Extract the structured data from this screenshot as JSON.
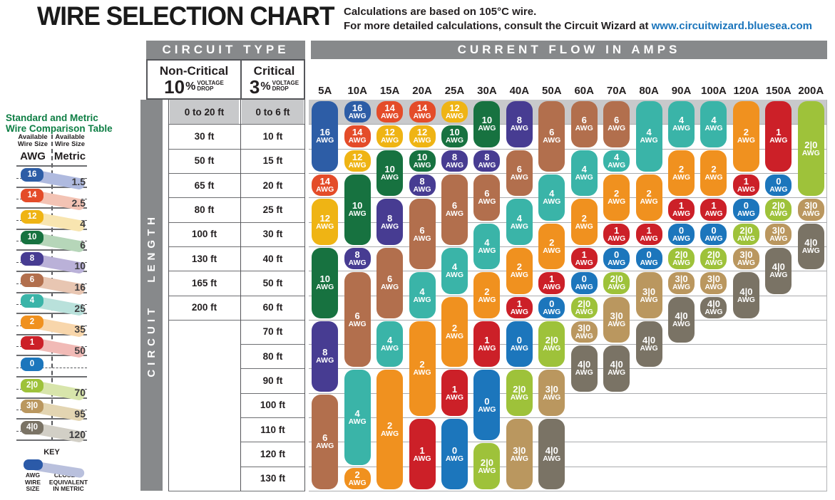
{
  "page": {
    "subtitle_line1": "Calculations are based on 105°C wire.",
    "subtitle_line2_prefix": "For more detailed calculations, consult the Circuit Wizard at ",
    "subtitle_link": "www.circuitwizard.bluesea.com",
    "link_color": "#1b75bc"
  },
  "headers": {
    "circuit_type": "CIRCUIT TYPE",
    "current_flow": "CURRENT FLOW IN AMPS",
    "circuit_length": "CIRCUIT LENGTH"
  },
  "circuit_type": {
    "non_critical_label": "Non-Critical",
    "non_critical_pct": "10",
    "critical_label": "Critical",
    "critical_pct": "3",
    "pct_sign": "%",
    "voltage_line1": "VOLTAGE",
    "voltage_line2": "DROP"
  },
  "chart_data": {
    "type": "table",
    "title": "WIRE SELECTION CHART",
    "awg_unit": "AWG",
    "amp_columns": [
      "5A",
      "10A",
      "15A",
      "20A",
      "25A",
      "30A",
      "40A",
      "50A",
      "60A",
      "70A",
      "80A",
      "90A",
      "100A",
      "120A",
      "150A",
      "200A"
    ],
    "length_rows": [
      {
        "non_critical": "0 to 20 ft",
        "critical": "0 to 6 ft"
      },
      {
        "non_critical": "30 ft",
        "critical": "10 ft"
      },
      {
        "non_critical": "50 ft",
        "critical": "15 ft"
      },
      {
        "non_critical": "65 ft",
        "critical": "20 ft"
      },
      {
        "non_critical": "80 ft",
        "critical": "25 ft"
      },
      {
        "non_critical": "100 ft",
        "critical": "30 ft"
      },
      {
        "non_critical": "130 ft",
        "critical": "40 ft"
      },
      {
        "non_critical": "165 ft",
        "critical": "50 ft"
      },
      {
        "non_critical": "200 ft",
        "critical": "60 ft"
      },
      {
        "non_critical": "",
        "critical": "70 ft"
      },
      {
        "non_critical": "",
        "critical": "80 ft"
      },
      {
        "non_critical": "",
        "critical": "90 ft"
      },
      {
        "non_critical": "",
        "critical": "100 ft"
      },
      {
        "non_critical": "",
        "critical": "110 ft"
      },
      {
        "non_critical": "",
        "critical": "120 ft"
      },
      {
        "non_critical": "",
        "critical": "130 ft"
      }
    ],
    "wire_colors": {
      "16": "#2d5da6",
      "14": "#e44c29",
      "12": "#efb414",
      "10": "#177240",
      "8": "#473c92",
      "6": "#b26f4d",
      "4": "#3ab4a8",
      "2": "#f0911f",
      "1": "#cc2028",
      "0": "#1c76bc",
      "2|0": "#9ec23a",
      "3|0": "#ba975f",
      "4|0": "#7a7365"
    },
    "columns": [
      {
        "amps": "5A",
        "segments": [
          {
            "gauge": "16",
            "from": 1,
            "to": 3
          },
          {
            "gauge": "14",
            "from": 4,
            "to": 4
          },
          {
            "gauge": "12",
            "from": 5,
            "to": 6
          },
          {
            "gauge": "10",
            "from": 7,
            "to": 9
          },
          {
            "gauge": "8",
            "from": 10,
            "to": 12
          },
          {
            "gauge": "6",
            "from": 13,
            "to": 16
          }
        ]
      },
      {
        "amps": "10A",
        "segments": [
          {
            "gauge": "16",
            "from": 1,
            "to": 1
          },
          {
            "gauge": "14",
            "from": 2,
            "to": 2
          },
          {
            "gauge": "12",
            "from": 3,
            "to": 3
          },
          {
            "gauge": "10",
            "from": 4,
            "to": 6
          },
          {
            "gauge": "8",
            "from": 7,
            "to": 7
          },
          {
            "gauge": "6",
            "from": 8,
            "to": 11
          },
          {
            "gauge": "4",
            "from": 12,
            "to": 15
          },
          {
            "gauge": "2",
            "from": 16,
            "to": 16
          }
        ]
      },
      {
        "amps": "15A",
        "segments": [
          {
            "gauge": "14",
            "from": 1,
            "to": 1
          },
          {
            "gauge": "12",
            "from": 2,
            "to": 2
          },
          {
            "gauge": "10",
            "from": 3,
            "to": 4
          },
          {
            "gauge": "8",
            "from": 5,
            "to": 6
          },
          {
            "gauge": "6",
            "from": 7,
            "to": 9
          },
          {
            "gauge": "4",
            "from": 10,
            "to": 11
          },
          {
            "gauge": "2",
            "from": 12,
            "to": 16
          }
        ]
      },
      {
        "amps": "20A",
        "segments": [
          {
            "gauge": "14",
            "from": 1,
            "to": 1
          },
          {
            "gauge": "12",
            "from": 2,
            "to": 2
          },
          {
            "gauge": "10",
            "from": 3,
            "to": 3
          },
          {
            "gauge": "8",
            "from": 4,
            "to": 4
          },
          {
            "gauge": "6",
            "from": 5,
            "to": 7
          },
          {
            "gauge": "4",
            "from": 8,
            "to": 9
          },
          {
            "gauge": "2",
            "from": 10,
            "to": 13
          },
          {
            "gauge": "1",
            "from": 14,
            "to": 16
          }
        ]
      },
      {
        "amps": "25A",
        "segments": [
          {
            "gauge": "12",
            "from": 1,
            "to": 1
          },
          {
            "gauge": "10",
            "from": 2,
            "to": 2
          },
          {
            "gauge": "8",
            "from": 3,
            "to": 3
          },
          {
            "gauge": "6",
            "from": 4,
            "to": 6
          },
          {
            "gauge": "4",
            "from": 7,
            "to": 8
          },
          {
            "gauge": "2",
            "from": 9,
            "to": 11
          },
          {
            "gauge": "1",
            "from": 12,
            "to": 13
          },
          {
            "gauge": "0",
            "from": 14,
            "to": 16
          }
        ]
      },
      {
        "amps": "30A",
        "segments": [
          {
            "gauge": "10",
            "from": 1,
            "to": 2
          },
          {
            "gauge": "8",
            "from": 3,
            "to": 3
          },
          {
            "gauge": "6",
            "from": 4,
            "to": 5
          },
          {
            "gauge": "4",
            "from": 6,
            "to": 7
          },
          {
            "gauge": "2",
            "from": 8,
            "to": 9
          },
          {
            "gauge": "1",
            "from": 10,
            "to": 11
          },
          {
            "gauge": "0",
            "from": 12,
            "to": 14
          },
          {
            "gauge": "2|0",
            "from": 15,
            "to": 16
          }
        ]
      },
      {
        "amps": "40A",
        "segments": [
          {
            "gauge": "8",
            "from": 1,
            "to": 2
          },
          {
            "gauge": "6",
            "from": 3,
            "to": 4
          },
          {
            "gauge": "4",
            "from": 5,
            "to": 6
          },
          {
            "gauge": "2",
            "from": 7,
            "to": 8
          },
          {
            "gauge": "1",
            "from": 9,
            "to": 9
          },
          {
            "gauge": "0",
            "from": 10,
            "to": 11
          },
          {
            "gauge": "2|0",
            "from": 12,
            "to": 13
          },
          {
            "gauge": "3|0",
            "from": 14,
            "to": 16
          }
        ]
      },
      {
        "amps": "50A",
        "segments": [
          {
            "gauge": "6",
            "from": 1,
            "to": 3
          },
          {
            "gauge": "4",
            "from": 4,
            "to": 5
          },
          {
            "gauge": "2",
            "from": 6,
            "to": 7
          },
          {
            "gauge": "1",
            "from": 8,
            "to": 8
          },
          {
            "gauge": "0",
            "from": 9,
            "to": 9
          },
          {
            "gauge": "2|0",
            "from": 10,
            "to": 11
          },
          {
            "gauge": "3|0",
            "from": 12,
            "to": 13
          },
          {
            "gauge": "4|0",
            "from": 14,
            "to": 16
          }
        ]
      },
      {
        "amps": "60A",
        "segments": [
          {
            "gauge": "6",
            "from": 1,
            "to": 2
          },
          {
            "gauge": "4",
            "from": 3,
            "to": 4
          },
          {
            "gauge": "2",
            "from": 5,
            "to": 6
          },
          {
            "gauge": "1",
            "from": 7,
            "to": 7
          },
          {
            "gauge": "0",
            "from": 8,
            "to": 8
          },
          {
            "gauge": "2|0",
            "from": 9,
            "to": 9
          },
          {
            "gauge": "3|0",
            "from": 10,
            "to": 10
          },
          {
            "gauge": "4|0",
            "from": 11,
            "to": 12
          }
        ]
      },
      {
        "amps": "70A",
        "segments": [
          {
            "gauge": "6",
            "from": 1,
            "to": 2
          },
          {
            "gauge": "4",
            "from": 3,
            "to": 3
          },
          {
            "gauge": "2",
            "from": 4,
            "to": 5
          },
          {
            "gauge": "1",
            "from": 6,
            "to": 6
          },
          {
            "gauge": "0",
            "from": 7,
            "to": 7
          },
          {
            "gauge": "2|0",
            "from": 8,
            "to": 8
          },
          {
            "gauge": "3|0",
            "from": 9,
            "to": 10
          },
          {
            "gauge": "4|0",
            "from": 11,
            "to": 12
          }
        ]
      },
      {
        "amps": "80A",
        "segments": [
          {
            "gauge": "4",
            "from": 1,
            "to": 3
          },
          {
            "gauge": "2",
            "from": 4,
            "to": 5
          },
          {
            "gauge": "1",
            "from": 6,
            "to": 6
          },
          {
            "gauge": "0",
            "from": 7,
            "to": 7
          },
          {
            "gauge": "3|0",
            "from": 8,
            "to": 9
          },
          {
            "gauge": "4|0",
            "from": 10,
            "to": 11
          }
        ]
      },
      {
        "amps": "90A",
        "segments": [
          {
            "gauge": "4",
            "from": 1,
            "to": 2
          },
          {
            "gauge": "2",
            "from": 3,
            "to": 4
          },
          {
            "gauge": "1",
            "from": 5,
            "to": 5
          },
          {
            "gauge": "0",
            "from": 6,
            "to": 6
          },
          {
            "gauge": "2|0",
            "from": 7,
            "to": 7
          },
          {
            "gauge": "3|0",
            "from": 8,
            "to": 8
          },
          {
            "gauge": "4|0",
            "from": 9,
            "to": 10
          }
        ]
      },
      {
        "amps": "100A",
        "segments": [
          {
            "gauge": "4",
            "from": 1,
            "to": 2
          },
          {
            "gauge": "2",
            "from": 3,
            "to": 4
          },
          {
            "gauge": "1",
            "from": 5,
            "to": 5
          },
          {
            "gauge": "0",
            "from": 6,
            "to": 6
          },
          {
            "gauge": "2|0",
            "from": 7,
            "to": 7
          },
          {
            "gauge": "3|0",
            "from": 8,
            "to": 8
          },
          {
            "gauge": "4|0",
            "from": 9,
            "to": 9
          }
        ]
      },
      {
        "amps": "120A",
        "segments": [
          {
            "gauge": "2",
            "from": 1,
            "to": 3
          },
          {
            "gauge": "1",
            "from": 4,
            "to": 4
          },
          {
            "gauge": "0",
            "from": 5,
            "to": 5
          },
          {
            "gauge": "2|0",
            "from": 6,
            "to": 6
          },
          {
            "gauge": "3|0",
            "from": 7,
            "to": 7
          },
          {
            "gauge": "4|0",
            "from": 8,
            "to": 9
          }
        ]
      },
      {
        "amps": "150A",
        "segments": [
          {
            "gauge": "1",
            "from": 1,
            "to": 3
          },
          {
            "gauge": "0",
            "from": 4,
            "to": 4
          },
          {
            "gauge": "2|0",
            "from": 5,
            "to": 5
          },
          {
            "gauge": "3|0",
            "from": 6,
            "to": 6
          },
          {
            "gauge": "4|0",
            "from": 7,
            "to": 8
          }
        ]
      },
      {
        "amps": "200A",
        "segments": [
          {
            "gauge": "2|0",
            "from": 1,
            "to": 4
          },
          {
            "gauge": "3|0",
            "from": 5,
            "to": 5
          },
          {
            "gauge": "4|0",
            "from": 6,
            "to": 7
          }
        ]
      }
    ]
  },
  "comparison_table": {
    "title_line1": "Standard and Metric",
    "title_line2": "Wire Comparison Table",
    "awg_header_line1": "Available",
    "awg_header_line2": "Wire Size",
    "awg_header_sub": "AWG",
    "metric_header_line1": "Available",
    "metric_header_line2": "Wire Size",
    "metric_header_sub": "Metric",
    "pairs": [
      {
        "awg": "16",
        "metric": "1.5",
        "band": "#afbadf"
      },
      {
        "awg": "14",
        "metric": "2.5",
        "band": "#f3c3b4"
      },
      {
        "awg": "12",
        "metric": "4",
        "band": "#f8e5b0"
      },
      {
        "awg": "10",
        "metric": "6",
        "band": "#b6d6b9"
      },
      {
        "awg": "8",
        "metric": "10",
        "band": "#bab1d8"
      },
      {
        "awg": "6",
        "metric": "16",
        "band": "#e8c6b2"
      },
      {
        "awg": "4",
        "metric": "25",
        "band": "#b9e1db"
      },
      {
        "awg": "2",
        "metric": "35",
        "band": "#f8d6ab"
      },
      {
        "awg": "1",
        "metric": "50",
        "band": "#f1bab6"
      },
      {
        "awg": "0",
        "metric": "",
        "band": ""
      },
      {
        "awg": "2|0",
        "metric": "70",
        "band": "#d8e5ab"
      },
      {
        "awg": "3|0",
        "metric": "95",
        "band": "#e3d5b2"
      },
      {
        "awg": "4|0",
        "metric": "120",
        "band": "#d2cfc6"
      }
    ],
    "key": {
      "label": "KEY",
      "pill_color": "#2b5aa8",
      "band_color": "#b9c0dd",
      "awg_caption_lines": [
        "AWG",
        "WIRE",
        "SIZE"
      ],
      "metric_caption_lines": [
        "CLOSEST",
        "EQUIVALENT",
        "IN METRIC"
      ]
    }
  }
}
